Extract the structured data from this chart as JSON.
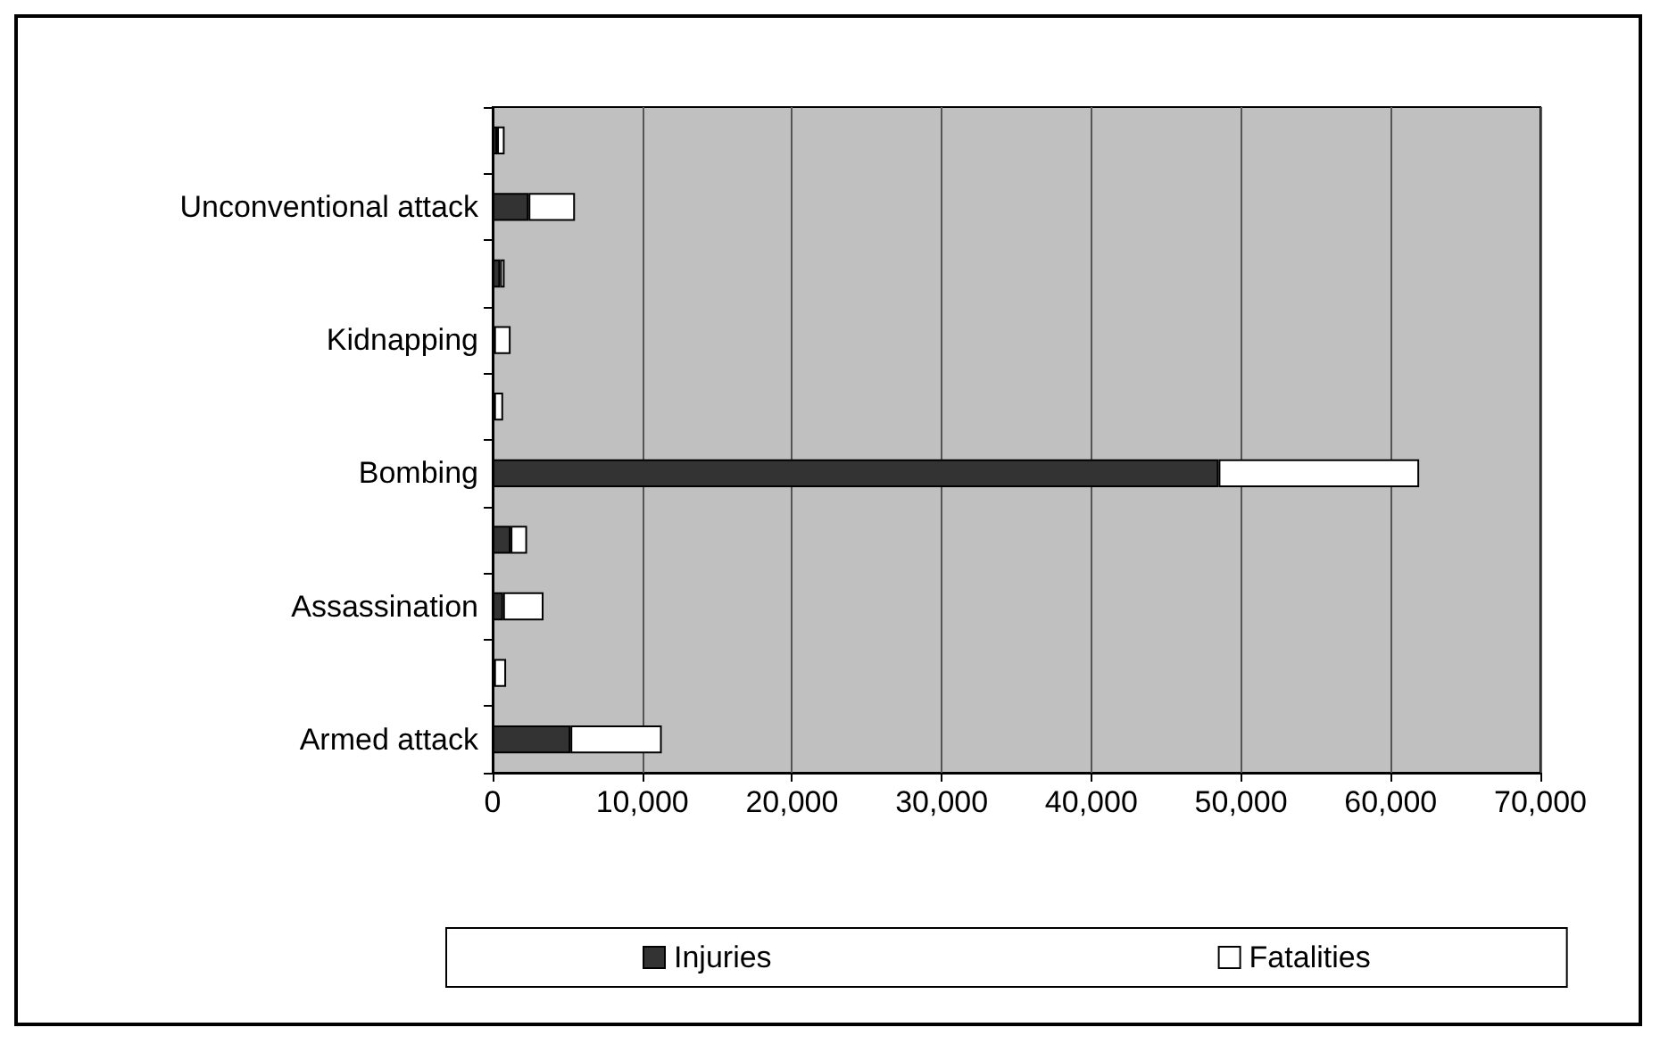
{
  "chart_data": {
    "type": "bar",
    "orientation": "horizontal",
    "stacked": true,
    "categories": [
      null,
      "Unconventional attack",
      null,
      "Kidnapping",
      null,
      "Bombing",
      null,
      "Assassination",
      null,
      "Armed attack"
    ],
    "series": [
      {
        "name": "Injuries",
        "color": "#333333",
        "values": [
          300,
          2400,
          500,
          100,
          100,
          48500,
          1200,
          700,
          100,
          5200
        ]
      },
      {
        "name": "Fatalities",
        "color": "#ffffff",
        "values": [
          500,
          3100,
          300,
          1100,
          600,
          13400,
          1100,
          2700,
          800,
          6100
        ]
      }
    ],
    "xlim": [
      0,
      70000
    ],
    "xticks": [
      0,
      {
        "value": 10000,
        "label": "10,000"
      },
      {
        "value": 20000,
        "label": "20,000"
      },
      {
        "value": 30000,
        "label": "30,000"
      },
      {
        "value": 40000,
        "label": "40,000"
      },
      {
        "value": 50000,
        "label": "50,000"
      },
      {
        "value": 60000,
        "label": "60,000"
      },
      {
        "value": 70000,
        "label": "70,000"
      }
    ],
    "grid": "x",
    "legend": "bottom"
  }
}
